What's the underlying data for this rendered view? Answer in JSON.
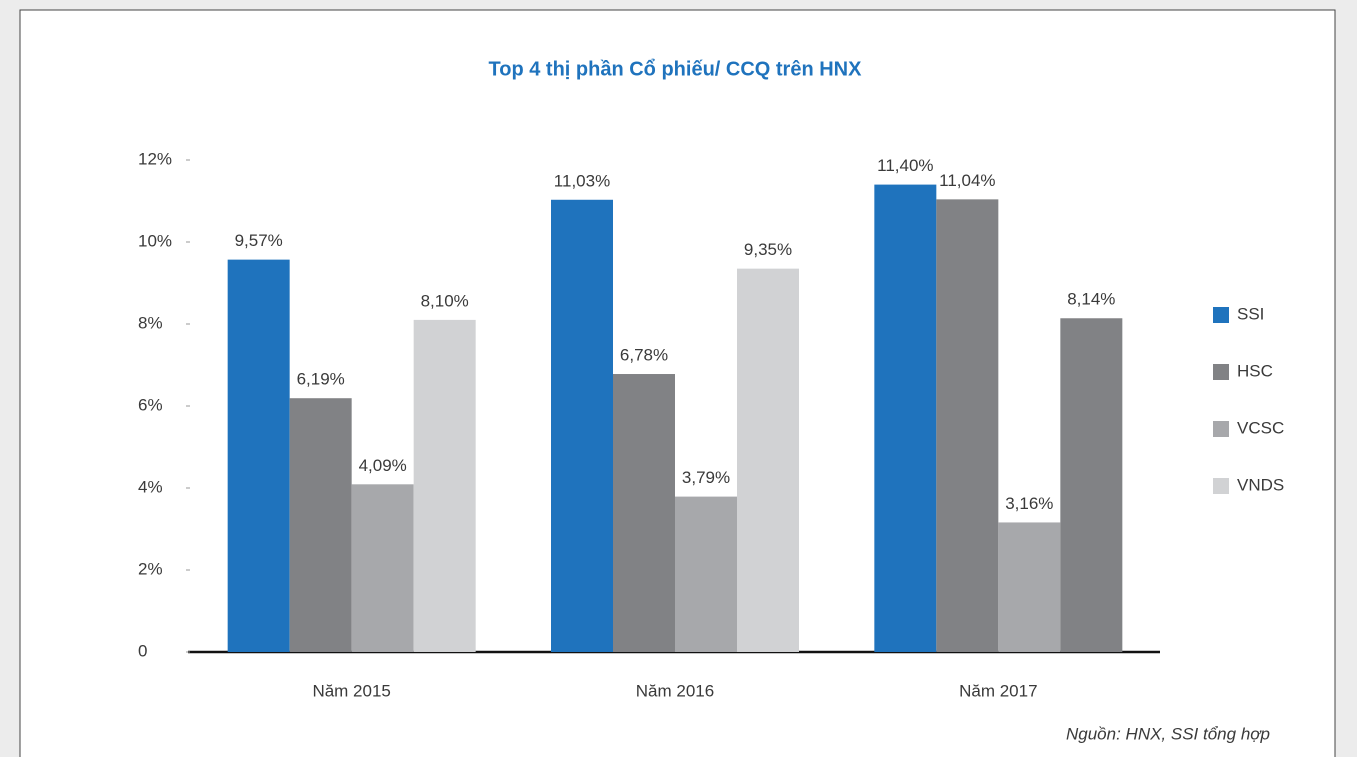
{
  "chart_data": {
    "type": "bar",
    "title": "Top 4 thị phần Cổ phiếu/ CCQ trên HNX",
    "source": "Nguồn: HNX, SSI tổng hợp",
    "categories": [
      "Năm 2015",
      "Năm 2016",
      "Năm 2017"
    ],
    "series": [
      {
        "name": "SSI",
        "color": "#1f73bd",
        "values": [
          9.57,
          11.03,
          11.4
        ],
        "value_labels": [
          "9,57%",
          "11,03%",
          "11,40%"
        ]
      },
      {
        "name": "HSC",
        "color": "#818285",
        "values": [
          6.19,
          6.78,
          11.04
        ],
        "value_labels": [
          "6,19%",
          "6,78%",
          "11,04%"
        ]
      },
      {
        "name": "VCSC",
        "color": "#a7a8ab",
        "values": [
          4.09,
          3.79,
          3.16
        ],
        "value_labels": [
          "4,09%",
          "3,79%",
          "3,16%"
        ]
      },
      {
        "name": "VNDS",
        "color": "#d1d2d4",
        "point_colors": [
          "#d1d2d4",
          "#d1d2d4",
          "#818285"
        ],
        "values": [
          8.1,
          9.35,
          8.14
        ],
        "value_labels": [
          "8,10%",
          "9,35%",
          "8,14%"
        ]
      }
    ],
    "ylim": [
      0,
      12
    ],
    "yticks": [
      0,
      {
        "value": 2,
        "label": "2%"
      },
      {
        "value": 4,
        "label": "4%"
      },
      {
        "value": 6,
        "label": "6%"
      },
      {
        "value": 8,
        "label": "8%"
      },
      {
        "value": 10,
        "label": "10%"
      },
      {
        "value": 12,
        "label": "12%"
      }
    ],
    "legend": "right"
  }
}
